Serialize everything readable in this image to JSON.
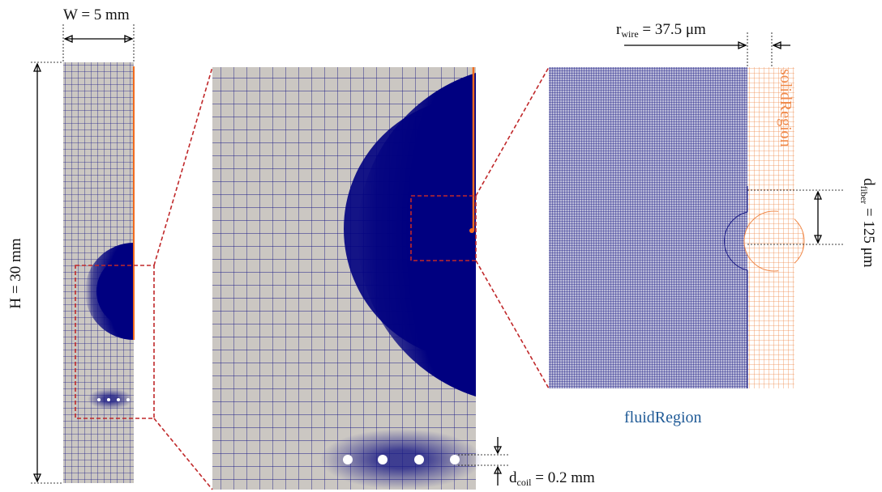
{
  "labels": {
    "width": "W = 5 mm",
    "height": "H = 30 mm",
    "r_wire": {
      "symbol": "r",
      "subscript": "wire",
      "value": " = 37.5 μm"
    },
    "solid_region": "solidRegion",
    "d_fiber": {
      "symbol": "d",
      "subscript": "fiber",
      "value": " = 125 μm"
    },
    "fluid_region": "fluidRegion",
    "d_coil": {
      "symbol": "d",
      "subscript": "coil",
      "value": " = 0.2 mm"
    }
  }
}
